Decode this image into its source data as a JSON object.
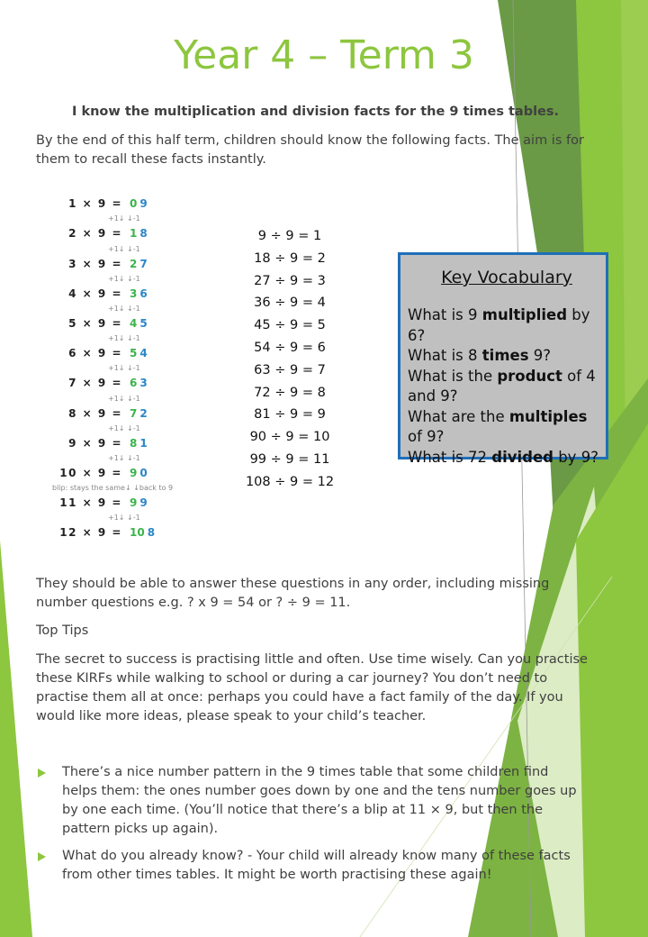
{
  "title": "Year 4 – Term 3",
  "subtitle": "I know the multiplication and division facts for the 9 times tables.",
  "intro": "By the end of this half term, children should know the following facts. The aim is for them to recall these facts instantly.",
  "multiplication": {
    "rows": [
      {
        "eq": "1 × 9 =",
        "tens": "0",
        "ones": "9"
      },
      {
        "eq": "2 × 9 =",
        "tens": "1",
        "ones": "8"
      },
      {
        "eq": "3 × 9 =",
        "tens": "2",
        "ones": "7"
      },
      {
        "eq": "4 × 9 =",
        "tens": "3",
        "ones": "6"
      },
      {
        "eq": "5 × 9 =",
        "tens": "4",
        "ones": "5"
      },
      {
        "eq": "6 × 9 =",
        "tens": "5",
        "ones": "4"
      },
      {
        "eq": "7 × 9 =",
        "tens": "6",
        "ones": "3"
      },
      {
        "eq": "8 × 9 =",
        "tens": "7",
        "ones": "2"
      },
      {
        "eq": "9 × 9 =",
        "tens": "8",
        "ones": "1"
      },
      {
        "eq": "10 × 9 =",
        "tens": "9",
        "ones": "0"
      },
      {
        "eq": "11 × 9 =",
        "tens": "9",
        "ones": "9"
      },
      {
        "eq": "12 × 9 =",
        "tens": "10",
        "ones": "8"
      }
    ],
    "step_annotation": "+1↓ ↓-1",
    "blip_annotation": "blip: stays the same↓ ↓back to 9"
  },
  "division": [
    "9 ÷ 9 = 1",
    "18 ÷ 9 = 2",
    "27 ÷ 9 = 3",
    "36 ÷ 9 = 4",
    "45 ÷ 9 = 5",
    "54 ÷ 9 = 6",
    "63 ÷ 9 = 7",
    "72 ÷ 9 = 8",
    "81 ÷ 9 = 9",
    "90 ÷ 9 = 10",
    "99 ÷ 9 = 11",
    "108 ÷ 9 = 12"
  ],
  "vocabulary": {
    "heading": "Key Vocabulary",
    "items": [
      {
        "pre": "What is 9 ",
        "bold": "multiplied",
        "post": " by 6?"
      },
      {
        "pre": "What is 8 ",
        "bold": "times",
        "post": " 9?"
      },
      {
        "pre": "What is the ",
        "bold": "product",
        "post": " of 4 and 9?"
      },
      {
        "pre": "What are the ",
        "bold": "multiples",
        "post": " of 9?"
      },
      {
        "pre": "What is 72 ",
        "bold": "divided",
        "post": " by 9?"
      }
    ]
  },
  "questions_text": "They should be able to answer these questions in any order, including missing number questions e.g.     ? x 9  = 54     or   ? ÷ 9 = 11.",
  "top_tips_heading": "Top Tips",
  "top_tips_text": "The secret to success is practising little and often. Use time wisely. Can you practise these KIRFs while walking to school or during a car journey? You don’t need to practise them all at once: perhaps you could have a fact family of the day. If you would like more ideas, please speak to your child’s teacher.",
  "bullets": [
    "There’s a nice number pattern in the 9 times table that some children find helps them: the ones number goes down by one and the tens number goes up by one each time. (You’ll notice that there’s a blip at 11 × 9, but then the pattern picks up again).",
    "What do you already know? - Your child will already know many of these facts from other times tables. It might be worth practising these again!"
  ],
  "colors": {
    "title": "#8dc63f",
    "tens": "#3bb34a",
    "ones": "#2b86c8",
    "vocab_border": "#1f6fb8",
    "vocab_bg": "#c0c0c0"
  }
}
